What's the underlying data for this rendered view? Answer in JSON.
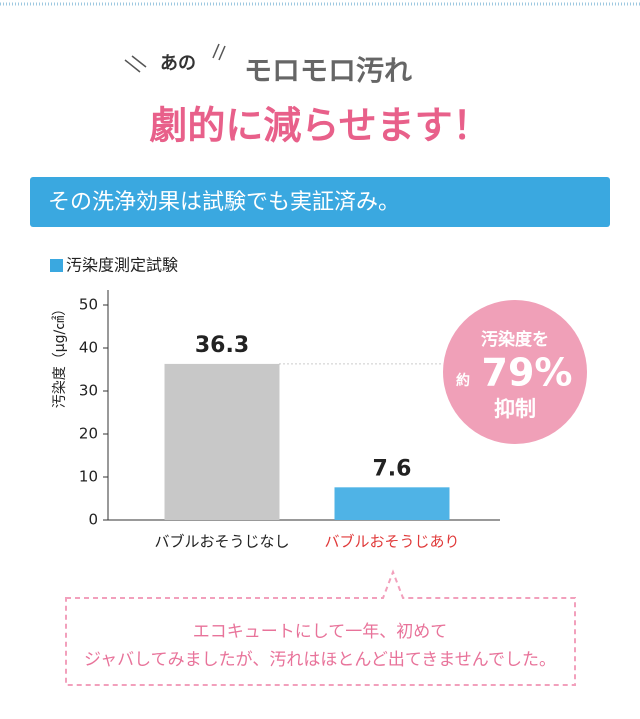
{
  "header": {
    "lead_small": "あの",
    "lead": "モロモロ汚れ",
    "title": "劇的に減らせます！"
  },
  "banner": "その洗浄効果は試験でも実証済み。",
  "chart_data": {
    "type": "bar",
    "title": "汚染度測定試験",
    "y_label": "汚染度（μg/㎠）",
    "categories": [
      "バブルおそうじなし",
      "バブルおそうじあり"
    ],
    "values": [
      36.3,
      7.6
    ],
    "colors": [
      "#c8c8c8",
      "#4fb3e6"
    ],
    "category_colors": [
      "#222222",
      "#e03a3a"
    ],
    "ylim": [
      0,
      50
    ],
    "yticks": [
      0,
      10,
      20,
      30,
      40,
      50
    ],
    "grid": false,
    "badge": {
      "top": "汚染度を",
      "prefix": "約",
      "main": "79%",
      "bottom": "抑制"
    }
  },
  "note": [
    "エコキュートにして一年、初めて",
    "ジャバしてみましたが、汚れはほとんど出てきませんでした。"
  ]
}
